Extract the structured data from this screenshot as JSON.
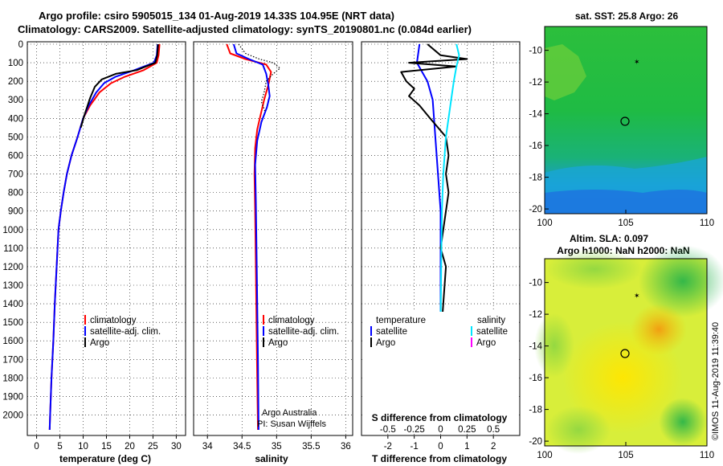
{
  "header": {
    "title_line1": "Argo profile: csiro 5905015_134 01-Aug-2019 14.33S 104.95E (NRT data)",
    "title_line2": "Climatology: CARS2009. Satellite-adjusted climatology: synTS_20190801.nc (0.084d earlier)"
  },
  "colors": {
    "climatology": "#ff0000",
    "satellite": "#0000ff",
    "argo": "#000000",
    "satellite_salinity": "#00e5ff",
    "argo_salinity": "#ff00ff"
  },
  "chart_data": [
    {
      "id": "temperature",
      "type": "line",
      "xlabel": "temperature (deg C)",
      "ylabel": "",
      "xlim": [
        -2,
        32
      ],
      "ylim": [
        2080,
        0
      ],
      "y_reversed": true,
      "x_ticks": [
        "0",
        "5",
        "10",
        "15",
        "20",
        "25",
        "30"
      ],
      "y_ticks": [
        "0",
        "100",
        "200",
        "300",
        "400",
        "500",
        "600",
        "700",
        "800",
        "900",
        "1000",
        "1100",
        "1200",
        "1300",
        "1400",
        "1500",
        "1600",
        "1700",
        "1800",
        "1900",
        "2000"
      ],
      "grid": true,
      "legend": [
        "climatology",
        "satellite-adj. clim.",
        "Argo"
      ],
      "legend_position": "lower-right",
      "series": [
        {
          "name": "climatology",
          "color_key": "climatology",
          "style": "solid",
          "points": [
            [
              26.4,
              0
            ],
            [
              26.2,
              60
            ],
            [
              25.8,
              100
            ],
            [
              23,
              140
            ],
            [
              19,
              175
            ],
            [
              16,
              210
            ],
            [
              13.5,
              260
            ],
            [
              11.5,
              330
            ],
            [
              10,
              400
            ],
            [
              8.8,
              500
            ],
            [
              7.5,
              600
            ],
            [
              6.5,
              700
            ],
            [
              5.8,
              800
            ],
            [
              5.2,
              900
            ],
            [
              4.7,
              1000
            ],
            [
              4.3,
              1200
            ],
            [
              3.9,
              1400
            ],
            [
              3.6,
              1600
            ],
            [
              3.2,
              1800
            ],
            [
              2.9,
              2000
            ],
            [
              2.8,
              2080
            ]
          ]
        },
        {
          "name": "satellite-adj. clim.",
          "color_key": "satellite",
          "style": "solid",
          "points": [
            [
              26.0,
              0
            ],
            [
              25.8,
              60
            ],
            [
              25.2,
              100
            ],
            [
              21,
              140
            ],
            [
              17,
              175
            ],
            [
              14.5,
              210
            ],
            [
              12.8,
              260
            ],
            [
              11.2,
              330
            ],
            [
              10,
              400
            ],
            [
              8.8,
              500
            ],
            [
              7.5,
              600
            ],
            [
              6.5,
              700
            ],
            [
              5.8,
              800
            ],
            [
              5.2,
              900
            ],
            [
              4.7,
              1000
            ],
            [
              4.3,
              1200
            ],
            [
              3.9,
              1400
            ],
            [
              3.6,
              1600
            ],
            [
              3.2,
              1800
            ],
            [
              2.9,
              2000
            ],
            [
              2.8,
              2080
            ]
          ]
        },
        {
          "name": "Argo",
          "color_key": "argo",
          "style": "solid",
          "points": [
            [
              26.1,
              0
            ],
            [
              25.9,
              60
            ],
            [
              25.5,
              100
            ],
            [
              21.5,
              140
            ],
            [
              17,
              160
            ],
            [
              14,
              190
            ],
            [
              12.5,
              230
            ],
            [
              11.5,
              290
            ],
            [
              10.3,
              380
            ],
            [
              9.5,
              450
            ]
          ]
        }
      ]
    },
    {
      "id": "salinity",
      "type": "line",
      "xlabel": "salinity",
      "ylabel": "",
      "xlim": [
        33.8,
        36.1
      ],
      "ylim": [
        2080,
        0
      ],
      "y_reversed": true,
      "x_ticks": [
        "34",
        "34.5",
        "35",
        "35.5",
        "36"
      ],
      "grid": true,
      "legend": [
        "climatology",
        "satellite-adj. clim.",
        "Argo"
      ],
      "legend_position": "lower-right",
      "annotations": [
        "Argo Australia",
        "PI: Susan Wijffels"
      ],
      "series": [
        {
          "name": "climatology",
          "color_key": "climatology",
          "style": "solid",
          "points": [
            [
              34.28,
              0
            ],
            [
              34.33,
              50
            ],
            [
              34.55,
              80
            ],
            [
              34.85,
              110
            ],
            [
              34.92,
              150
            ],
            [
              34.88,
              220
            ],
            [
              34.82,
              300
            ],
            [
              34.77,
              380
            ],
            [
              34.72,
              460
            ],
            [
              34.69,
              560
            ],
            [
              34.68,
              700
            ],
            [
              34.69,
              900
            ],
            [
              34.7,
              1200
            ],
            [
              34.71,
              1500
            ],
            [
              34.72,
              1800
            ],
            [
              34.73,
              2080
            ]
          ]
        },
        {
          "name": "satellite-adj. clim.",
          "color_key": "satellite",
          "style": "solid",
          "points": [
            [
              34.38,
              0
            ],
            [
              34.42,
              50
            ],
            [
              34.6,
              80
            ],
            [
              34.8,
              110
            ],
            [
              34.85,
              160
            ],
            [
              34.88,
              220
            ],
            [
              34.9,
              280
            ],
            [
              34.86,
              340
            ],
            [
              34.78,
              420
            ],
            [
              34.72,
              520
            ],
            [
              34.69,
              650
            ],
            [
              34.7,
              850
            ],
            [
              34.71,
              1100
            ],
            [
              34.72,
              1400
            ],
            [
              34.73,
              1700
            ],
            [
              34.74,
              2080
            ]
          ]
        },
        {
          "name": "Argo",
          "color_key": "argo",
          "style": "dotted",
          "points": [
            [
              34.45,
              0
            ],
            [
              34.55,
              50
            ],
            [
              34.75,
              80
            ],
            [
              34.95,
              100
            ],
            [
              35.05,
              130
            ],
            [
              34.95,
              160
            ],
            [
              34.85,
              200
            ],
            [
              34.82,
              260
            ],
            [
              34.78,
              310
            ],
            [
              34.83,
              360
            ]
          ]
        }
      ]
    },
    {
      "id": "difference",
      "type": "line",
      "xlabel": "T difference from climatology",
      "xlabel_top": "S difference from climatology",
      "ylabel": "",
      "xlim": [
        -3,
        3
      ],
      "ylim": [
        2080,
        0
      ],
      "y_reversed": true,
      "x_ticks": [
        "-2",
        "-1",
        "0",
        "1",
        "2"
      ],
      "x_ticks_top": [
        "-0.5",
        "-0.25",
        "0",
        "0.25",
        "0.5"
      ],
      "grid": true,
      "legend_temperature_title": "temperature",
      "legend_salinity_title": "salinity",
      "legend_temperature": [
        "satellite",
        "Argo"
      ],
      "legend_salinity": [
        "satellite",
        "Argo"
      ],
      "legend_position": "lower",
      "series": [
        {
          "name": "temperature satellite",
          "color_key": "satellite",
          "points": [
            [
              -0.8,
              0
            ],
            [
              -0.9,
              100
            ],
            [
              -0.5,
              200
            ],
            [
              -0.3,
              300
            ],
            [
              -0.2,
              500
            ],
            [
              -0.1,
              700
            ],
            [
              0,
              900
            ],
            [
              0,
              1200
            ],
            [
              0,
              1500
            ],
            [
              0,
              1800
            ],
            [
              0,
              2080
            ]
          ]
        },
        {
          "name": "temperature Argo",
          "color_key": "argo",
          "points": [
            [
              -0.5,
              0
            ],
            [
              0,
              60
            ],
            [
              1,
              80
            ],
            [
              -1.2,
              100
            ],
            [
              0.6,
              120
            ],
            [
              -1.5,
              150
            ],
            [
              -1.3,
              200
            ],
            [
              -1.0,
              240
            ],
            [
              -1.2,
              280
            ],
            [
              -0.8,
              330
            ],
            [
              -0.4,
              400
            ],
            [
              0.2,
              500
            ],
            [
              0.3,
              600
            ],
            [
              0.2,
              700
            ],
            [
              0.3,
              800
            ],
            [
              0.2,
              900
            ],
            [
              0.1,
              1000
            ],
            [
              0,
              1100
            ],
            [
              0.2,
              1200
            ],
            [
              0.1,
              1400
            ],
            [
              0,
              1600
            ],
            [
              0.1,
              1800
            ],
            [
              0,
              2000
            ],
            [
              0,
              2080
            ]
          ]
        },
        {
          "name": "salinity satellite",
          "color_key": "satellite_salinity",
          "points": [
            [
              0.6,
              0
            ],
            [
              0.7,
              60
            ],
            [
              0.6,
              120
            ],
            [
              0.5,
              200
            ],
            [
              0.4,
              300
            ],
            [
              0.2,
              500
            ],
            [
              0.1,
              700
            ],
            [
              0.05,
              900
            ],
            [
              0.02,
              1200
            ],
            [
              0,
              1500
            ],
            [
              0,
              1800
            ],
            [
              0,
              2080
            ]
          ]
        }
      ]
    }
  ],
  "maps": [
    {
      "id": "sst-map",
      "title": "sat. SST: 25.8 Argo: 26",
      "x_ticks": [
        "100",
        "105",
        "110"
      ],
      "y_ticks": [
        "-10",
        "-12",
        "-14",
        "-16",
        "-18",
        "-20"
      ],
      "lon_range": [
        100,
        110
      ],
      "lat_range": [
        -20.3,
        -8.5
      ]
    },
    {
      "id": "sla-map",
      "title_line1": "Altim. SLA: 0.097",
      "title_line2": "Argo h1000: NaN h2000: NaN",
      "x_ticks": [
        "100",
        "105",
        "110"
      ],
      "y_ticks": [
        "-10",
        "-12",
        "-14",
        "-16",
        "-18",
        "-20"
      ],
      "lon_range": [
        100,
        110
      ],
      "lat_range": [
        -20.3,
        -8.5
      ]
    }
  ],
  "footer": {
    "credit": "©IMOS 11-Aug-2019 11:39:40"
  }
}
